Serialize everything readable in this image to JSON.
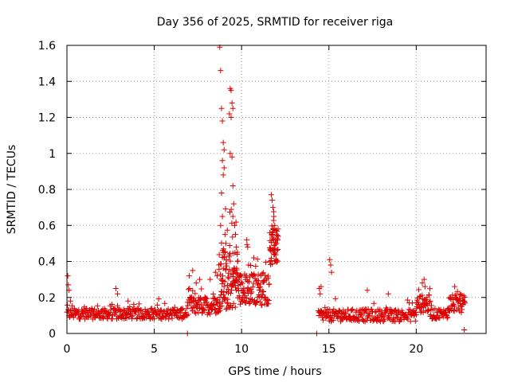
{
  "chart_data": {
    "type": "scatter",
    "title": "Day 356 of 2025, SRMTID for receiver riga",
    "xlabel": "GPS time / hours",
    "ylabel": "SRMTID / TECUs",
    "xlim": [
      0,
      24
    ],
    "ylim": [
      0,
      1.6
    ],
    "grid": true,
    "marker": "+",
    "marker_color": "#dd0000",
    "x_ticks": [
      0,
      5,
      10,
      15,
      20
    ],
    "x_tick_labels": [
      "0",
      "5",
      "10",
      "15",
      "20"
    ],
    "y_ticks": [
      0,
      0.2,
      0.4,
      0.6,
      0.8,
      1.0,
      1.2,
      1.4,
      1.6
    ],
    "y_tick_labels": [
      "0",
      "0.2",
      "0.4",
      "0.6",
      "0.8",
      "1",
      "1.2",
      "1.4",
      "1.6"
    ],
    "series": [
      {
        "name": "SRMTID",
        "segments": [
          {
            "x_start": 0.0,
            "x_end": 6.9,
            "base": 0.1,
            "spread": 0.06,
            "step": 0.025
          },
          {
            "x_start": 6.9,
            "x_end": 8.7,
            "base": 0.14,
            "spread": 0.1,
            "step": 0.02
          },
          {
            "x_start": 8.7,
            "x_end": 9.8,
            "base": 0.25,
            "spread": 0.35,
            "step": 0.01
          },
          {
            "x_start": 9.8,
            "x_end": 11.6,
            "base": 0.22,
            "spread": 0.18,
            "step": 0.015
          },
          {
            "x_start": 11.6,
            "x_end": 12.1,
            "base": 0.45,
            "spread": 0.2,
            "step": 0.01
          },
          {
            "x_start": 14.4,
            "x_end": 20.0,
            "base": 0.09,
            "spread": 0.07,
            "step": 0.025
          },
          {
            "x_start": 20.0,
            "x_end": 20.8,
            "base": 0.15,
            "spread": 0.1,
            "step": 0.02
          },
          {
            "x_start": 20.8,
            "x_end": 21.8,
            "base": 0.1,
            "spread": 0.06,
            "step": 0.025
          },
          {
            "x_start": 21.8,
            "x_end": 22.8,
            "base": 0.15,
            "spread": 0.1,
            "step": 0.02
          }
        ],
        "points": [
          [
            0.05,
            0.32
          ],
          [
            0.08,
            0.27
          ],
          [
            0.12,
            0.24
          ],
          [
            0.2,
            0.18
          ],
          [
            2.8,
            0.25
          ],
          [
            2.9,
            0.22
          ],
          [
            3.5,
            0.18
          ],
          [
            6.9,
            0.0
          ],
          [
            7.0,
            0.32
          ],
          [
            7.2,
            0.35
          ],
          [
            7.4,
            0.28
          ],
          [
            7.6,
            0.3
          ],
          [
            8.2,
            0.3
          ],
          [
            8.5,
            0.34
          ],
          [
            8.6,
            0.32
          ],
          [
            8.75,
            1.59
          ],
          [
            8.8,
            1.46
          ],
          [
            8.85,
            1.25
          ],
          [
            8.9,
            1.18
          ],
          [
            8.95,
            1.06
          ],
          [
            9.0,
            1.02
          ],
          [
            8.9,
            0.96
          ],
          [
            8.95,
            0.88
          ],
          [
            9.0,
            0.92
          ],
          [
            8.85,
            0.78
          ],
          [
            8.9,
            0.65
          ],
          [
            8.8,
            0.6
          ],
          [
            9.05,
            0.55
          ],
          [
            9.1,
            0.5
          ],
          [
            8.95,
            0.45
          ],
          [
            9.0,
            0.42
          ],
          [
            9.35,
            1.36
          ],
          [
            9.4,
            1.35
          ],
          [
            9.45,
            1.28
          ],
          [
            9.5,
            1.25
          ],
          [
            9.3,
            1.22
          ],
          [
            9.4,
            1.2
          ],
          [
            9.35,
            1.0
          ],
          [
            9.45,
            0.98
          ],
          [
            9.5,
            0.82
          ],
          [
            9.55,
            0.72
          ],
          [
            9.5,
            0.65
          ],
          [
            9.6,
            0.6
          ],
          [
            9.65,
            0.55
          ],
          [
            9.7,
            0.48
          ],
          [
            9.75,
            0.44
          ],
          [
            10.3,
            0.52
          ],
          [
            10.35,
            0.48
          ],
          [
            10.7,
            0.42
          ],
          [
            10.4,
            0.38
          ],
          [
            11.7,
            0.77
          ],
          [
            11.75,
            0.74
          ],
          [
            11.8,
            0.7
          ],
          [
            11.85,
            0.65
          ],
          [
            11.9,
            0.6
          ],
          [
            11.75,
            0.55
          ],
          [
            11.95,
            0.52
          ],
          [
            12.0,
            0.5
          ],
          [
            11.8,
            0.46
          ],
          [
            11.85,
            0.44
          ],
          [
            14.3,
            0.0
          ],
          [
            14.45,
            0.25
          ],
          [
            14.5,
            0.22
          ],
          [
            14.55,
            0.26
          ],
          [
            15.05,
            0.41
          ],
          [
            15.1,
            0.38
          ],
          [
            15.15,
            0.34
          ],
          [
            17.2,
            0.24
          ],
          [
            18.4,
            0.22
          ],
          [
            20.35,
            0.28
          ],
          [
            20.45,
            0.3
          ],
          [
            20.5,
            0.26
          ],
          [
            22.2,
            0.26
          ],
          [
            22.5,
            0.22
          ],
          [
            22.75,
            0.02
          ]
        ]
      }
    ]
  }
}
